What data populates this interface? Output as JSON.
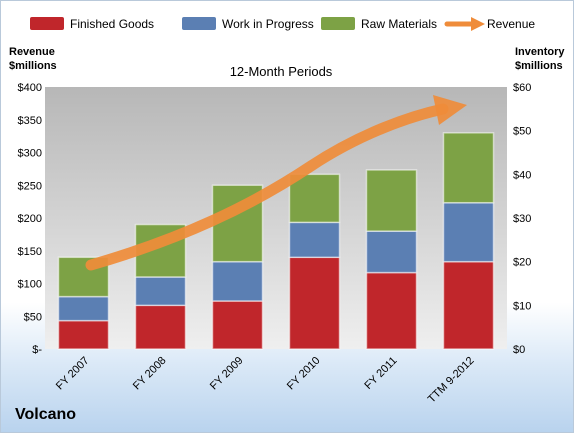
{
  "company": "Volcano",
  "chart_data": {
    "type": "bar",
    "stacked": true,
    "title": "12-Month Periods",
    "categories": [
      "FY 2007",
      "FY 2008",
      "FY 2009",
      "FY 2010",
      "FY 2011",
      "TTM 9-2012"
    ],
    "left_axis": {
      "label_line1": "Revenue",
      "label_line2": "$millions",
      "ylim": [
        0,
        400
      ],
      "ticks": [
        "$-",
        "$50",
        "$100",
        "$150",
        "$200",
        "$250",
        "$300",
        "$350",
        "$400"
      ]
    },
    "right_axis": {
      "label_line1": "Inventory",
      "label_line2": "$millions",
      "ylim": [
        0,
        60
      ],
      "ticks": [
        "$0",
        "$10",
        "$20",
        "$30",
        "$40",
        "$50",
        "$60"
      ]
    },
    "series": [
      {
        "name": "Finished Goods",
        "axis": "right",
        "color": "#c0262b",
        "values": [
          6.5,
          10,
          11,
          21,
          17.5,
          20
        ]
      },
      {
        "name": "Work in Progress",
        "axis": "right",
        "color": "#5b7fb3",
        "values": [
          5.5,
          6.5,
          9,
          8,
          9.5,
          13.5
        ]
      },
      {
        "name": "Raw Materials",
        "axis": "right",
        "color": "#7da245",
        "values": [
          9,
          12,
          17.5,
          11,
          14,
          16
        ]
      }
    ],
    "trend": {
      "name": "Revenue",
      "color": "#ef8c3a",
      "type": "arrow"
    },
    "legend_position": "top",
    "grid": false
  }
}
